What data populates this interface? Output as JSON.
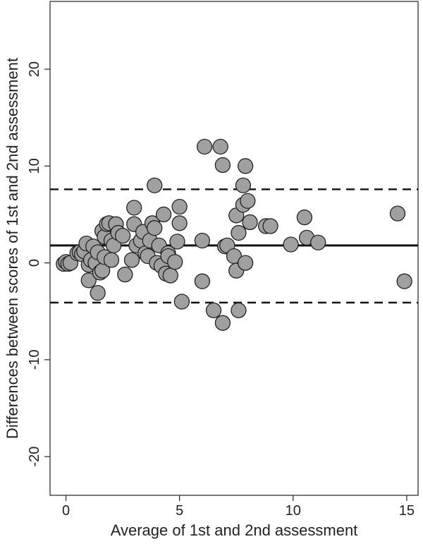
{
  "chart_data": {
    "type": "scatter",
    "title": "",
    "xlabel": "Average of 1st and 2nd assessment",
    "ylabel": "Differences between scores of 1st and 2nd assessment",
    "xlim": [
      -0.7,
      15.5
    ],
    "ylim": [
      -24,
      27
    ],
    "xticks": [
      0,
      5,
      10,
      15
    ],
    "yticks": [
      -20,
      -10,
      0,
      10,
      20
    ],
    "xtick_labels": [
      "0",
      "5",
      "10",
      "15"
    ],
    "ytick_labels": [
      "-20",
      "-10",
      "0",
      "10",
      "20"
    ],
    "grid": false,
    "legend": "none",
    "reference_lines": {
      "mean_difference": 1.8,
      "upper_limit_of_agreement": 7.6,
      "lower_limit_of_agreement": -4.1
    },
    "marker_fill": "#a0a0a0",
    "marker_edge": "#222222",
    "points": [
      {
        "x": -0.1,
        "y": -0.1
      },
      {
        "x": 0.0,
        "y": 0.1
      },
      {
        "x": 0.1,
        "y": -0.1
      },
      {
        "x": 0.2,
        "y": 0.0
      },
      {
        "x": 0.5,
        "y": 1.0
      },
      {
        "x": 0.6,
        "y": 1.1
      },
      {
        "x": 0.7,
        "y": 0.9
      },
      {
        "x": 0.8,
        "y": 1.2
      },
      {
        "x": 0.9,
        "y": 2.0
      },
      {
        "x": 1.0,
        "y": -0.2
      },
      {
        "x": 1.0,
        "y": -1.8
      },
      {
        "x": 1.1,
        "y": 0.3
      },
      {
        "x": 1.2,
        "y": 1.7
      },
      {
        "x": 1.3,
        "y": 0.0
      },
      {
        "x": 1.4,
        "y": -3.1
      },
      {
        "x": 1.4,
        "y": 1.1
      },
      {
        "x": 1.5,
        "y": -1.0
      },
      {
        "x": 1.6,
        "y": 3.3
      },
      {
        "x": 1.6,
        "y": -0.8
      },
      {
        "x": 1.7,
        "y": 0.6
      },
      {
        "x": 1.7,
        "y": 2.7
      },
      {
        "x": 1.8,
        "y": 4.0
      },
      {
        "x": 1.9,
        "y": 4.1
      },
      {
        "x": 2.0,
        "y": 2.3
      },
      {
        "x": 2.0,
        "y": 0.3
      },
      {
        "x": 2.1,
        "y": 1.8
      },
      {
        "x": 2.2,
        "y": 4.0
      },
      {
        "x": 2.3,
        "y": 3.1
      },
      {
        "x": 2.5,
        "y": 2.8
      },
      {
        "x": 2.6,
        "y": -1.2
      },
      {
        "x": 2.9,
        "y": 0.3
      },
      {
        "x": 3.0,
        "y": 4.0
      },
      {
        "x": 3.0,
        "y": 5.7
      },
      {
        "x": 3.1,
        "y": 1.8
      },
      {
        "x": 3.3,
        "y": 2.3
      },
      {
        "x": 3.4,
        "y": 3.2
      },
      {
        "x": 3.5,
        "y": 1.0
      },
      {
        "x": 3.6,
        "y": 0.7
      },
      {
        "x": 3.7,
        "y": 2.3
      },
      {
        "x": 3.8,
        "y": 4.1
      },
      {
        "x": 3.9,
        "y": 3.6
      },
      {
        "x": 3.9,
        "y": 8.0
      },
      {
        "x": 4.0,
        "y": 0.0
      },
      {
        "x": 4.1,
        "y": 1.8
      },
      {
        "x": 4.2,
        "y": -0.3
      },
      {
        "x": 4.3,
        "y": 5.0
      },
      {
        "x": 4.4,
        "y": -1.1
      },
      {
        "x": 4.5,
        "y": 1.0
      },
      {
        "x": 4.5,
        "y": 0.7
      },
      {
        "x": 4.6,
        "y": -1.3
      },
      {
        "x": 4.8,
        "y": 0.1
      },
      {
        "x": 4.9,
        "y": 2.2
      },
      {
        "x": 5.0,
        "y": 5.8
      },
      {
        "x": 5.0,
        "y": 4.1
      },
      {
        "x": 5.1,
        "y": -4.0
      },
      {
        "x": 6.0,
        "y": 2.3
      },
      {
        "x": 6.0,
        "y": -1.9
      },
      {
        "x": 6.1,
        "y": 12.0
      },
      {
        "x": 6.5,
        "y": -4.9
      },
      {
        "x": 6.8,
        "y": 12.0
      },
      {
        "x": 6.9,
        "y": 10.1
      },
      {
        "x": 6.9,
        "y": -6.2
      },
      {
        "x": 7.0,
        "y": 1.7
      },
      {
        "x": 7.1,
        "y": 1.8
      },
      {
        "x": 7.4,
        "y": 0.7
      },
      {
        "x": 7.5,
        "y": 4.9
      },
      {
        "x": 7.5,
        "y": -0.8
      },
      {
        "x": 7.6,
        "y": -4.9
      },
      {
        "x": 7.6,
        "y": 3.1
      },
      {
        "x": 7.8,
        "y": 8.0
      },
      {
        "x": 7.9,
        "y": 10.0
      },
      {
        "x": 7.8,
        "y": 6.0
      },
      {
        "x": 7.9,
        "y": 0.0
      },
      {
        "x": 8.0,
        "y": 6.4
      },
      {
        "x": 8.1,
        "y": 4.2
      },
      {
        "x": 8.8,
        "y": 3.8
      },
      {
        "x": 9.0,
        "y": 3.8
      },
      {
        "x": 9.9,
        "y": 1.9
      },
      {
        "x": 10.5,
        "y": 4.7
      },
      {
        "x": 10.6,
        "y": 2.6
      },
      {
        "x": 11.1,
        "y": 2.1
      },
      {
        "x": 14.6,
        "y": 5.1
      },
      {
        "x": 14.9,
        "y": -1.9
      }
    ]
  }
}
